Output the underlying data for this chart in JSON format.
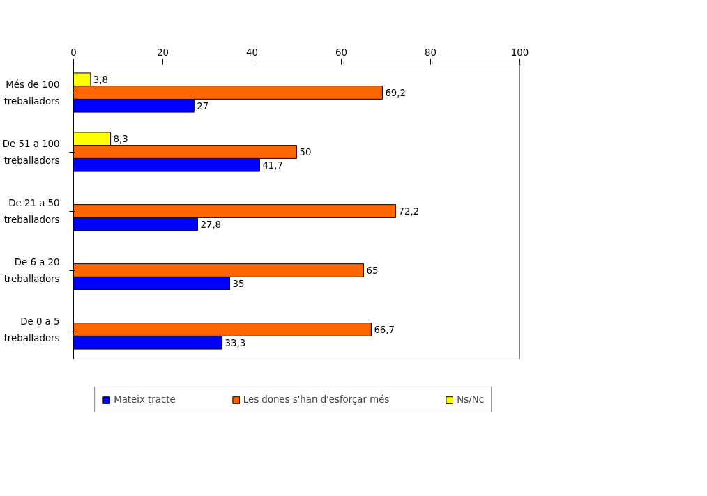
{
  "chart_data": {
    "type": "bar",
    "orientation": "horizontal",
    "categories": [
      "Més de 100\ntreballadors",
      "De 51 a 100\ntreballadors",
      "De 21 a 50\ntreballadors",
      "De 6 a 20\ntreballadors",
      "De 0 a 5\ntreballadors"
    ],
    "series": [
      {
        "name": "Mateix tracte",
        "color": "#0000ff",
        "values": [
          27,
          41.7,
          27.8,
          35,
          33.3
        ],
        "value_labels": [
          "27",
          "41,7",
          "27,8",
          "35",
          "33,3"
        ]
      },
      {
        "name": "Les dones s'han d'esforçar més",
        "color": "#ff6600",
        "values": [
          69.2,
          50,
          72.2,
          65,
          66.7
        ],
        "value_labels": [
          "69,2",
          "50",
          "72,2",
          "65",
          "66,7"
        ]
      },
      {
        "name": "Ns/Nc",
        "color": "#ffff00",
        "values": [
          3.8,
          8.3,
          null,
          null,
          null
        ],
        "value_labels": [
          "3,8",
          "8,3",
          null,
          null,
          null
        ]
      }
    ],
    "xlim": [
      0,
      100
    ],
    "xticks": [
      0,
      20,
      40,
      60,
      80,
      100
    ],
    "grid": false,
    "legend": "bottom"
  }
}
